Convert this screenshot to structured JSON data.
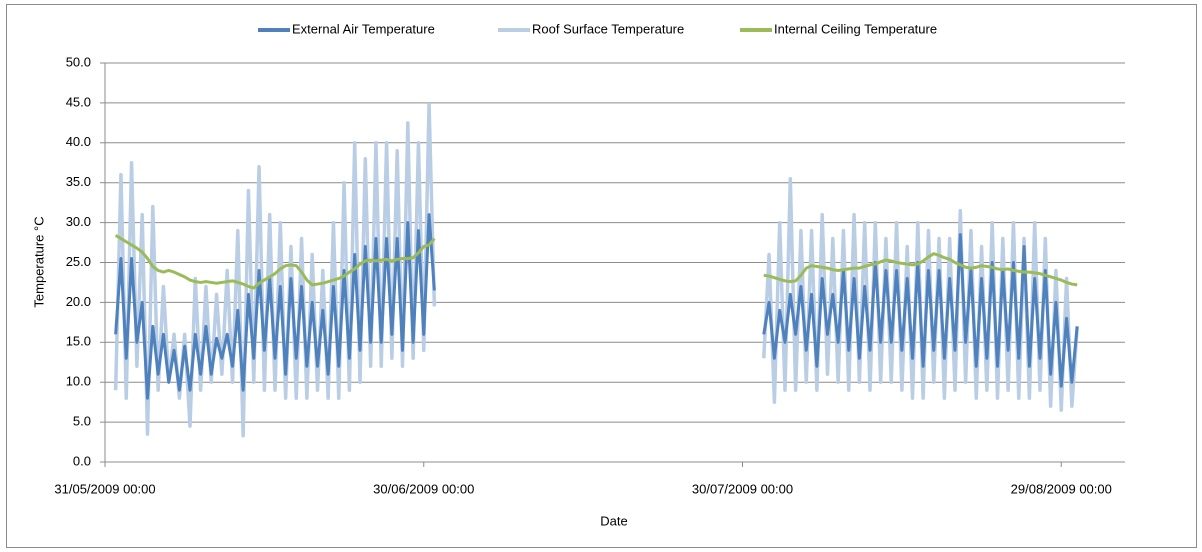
{
  "chart_data": {
    "type": "line",
    "y_label": "Temperature °C",
    "x_label": "Date",
    "x": [
      "01/06/2009 00:00",
      "01/06/2009 12:00",
      "02/06/2009 00:00",
      "02/06/2009 12:00",
      "03/06/2009 00:00",
      "03/06/2009 12:00",
      "04/06/2009 00:00",
      "04/06/2009 12:00",
      "05/06/2009 00:00",
      "05/06/2009 12:00",
      "06/06/2009 00:00",
      "06/06/2009 12:00",
      "07/06/2009 00:00",
      "07/06/2009 12:00",
      "08/06/2009 00:00",
      "08/06/2009 12:00",
      "09/06/2009 00:00",
      "09/06/2009 12:00",
      "10/06/2009 00:00",
      "10/06/2009 12:00",
      "11/06/2009 00:00",
      "11/06/2009 12:00",
      "12/06/2009 00:00",
      "12/06/2009 12:00",
      "13/06/2009 00:00",
      "13/06/2009 12:00",
      "14/06/2009 00:00",
      "14/06/2009 12:00",
      "15/06/2009 00:00",
      "15/06/2009 12:00",
      "16/06/2009 00:00",
      "16/06/2009 12:00",
      "17/06/2009 00:00",
      "17/06/2009 12:00",
      "18/06/2009 00:00",
      "18/06/2009 12:00",
      "19/06/2009 00:00",
      "19/06/2009 12:00",
      "20/06/2009 00:00",
      "20/06/2009 12:00",
      "21/06/2009 00:00",
      "21/06/2009 12:00",
      "22/06/2009 00:00",
      "22/06/2009 12:00",
      "23/06/2009 00:00",
      "23/06/2009 12:00",
      "24/06/2009 00:00",
      "24/06/2009 12:00",
      "25/06/2009 00:00",
      "25/06/2009 12:00",
      "26/06/2009 00:00",
      "26/06/2009 12:00",
      "27/06/2009 00:00",
      "27/06/2009 12:00",
      "28/06/2009 00:00",
      "28/06/2009 12:00",
      "29/06/2009 00:00",
      "29/06/2009 12:00",
      "30/06/2009 00:00",
      "30/06/2009 12:00",
      "01/07/2009 00:00",
      "15/07/2009 00:00",
      "01/08/2009 00:00",
      "01/08/2009 12:00",
      "02/08/2009 00:00",
      "02/08/2009 12:00",
      "03/08/2009 00:00",
      "03/08/2009 12:00",
      "04/08/2009 00:00",
      "04/08/2009 12:00",
      "05/08/2009 00:00",
      "05/08/2009 12:00",
      "06/08/2009 00:00",
      "06/08/2009 12:00",
      "07/08/2009 00:00",
      "07/08/2009 12:00",
      "08/08/2009 00:00",
      "08/08/2009 12:00",
      "09/08/2009 00:00",
      "09/08/2009 12:00",
      "10/08/2009 00:00",
      "10/08/2009 12:00",
      "11/08/2009 00:00",
      "11/08/2009 12:00",
      "12/08/2009 00:00",
      "12/08/2009 12:00",
      "13/08/2009 00:00",
      "13/08/2009 12:00",
      "14/08/2009 00:00",
      "14/08/2009 12:00",
      "15/08/2009 00:00",
      "15/08/2009 12:00",
      "16/08/2009 00:00",
      "16/08/2009 12:00",
      "17/08/2009 00:00",
      "17/08/2009 12:00",
      "18/08/2009 00:00",
      "18/08/2009 12:00",
      "19/08/2009 00:00",
      "19/08/2009 12:00",
      "20/08/2009 00:00",
      "20/08/2009 12:00",
      "21/08/2009 00:00",
      "21/08/2009 12:00",
      "22/08/2009 00:00",
      "22/08/2009 12:00",
      "23/08/2009 00:00",
      "23/08/2009 12:00",
      "24/08/2009 00:00",
      "24/08/2009 12:00",
      "25/08/2009 00:00",
      "25/08/2009 12:00",
      "26/08/2009 00:00",
      "26/08/2009 12:00",
      "27/08/2009 00:00",
      "27/08/2009 12:00",
      "28/08/2009 00:00",
      "28/08/2009 12:00",
      "29/08/2009 00:00",
      "29/08/2009 12:00",
      "30/08/2009 00:00",
      "30/08/2009 12:00"
    ],
    "series": [
      {
        "name": "External Air Temperature",
        "color": "#4f81bd",
        "values": [
          16,
          25.5,
          13,
          25.5,
          15,
          20,
          8,
          17,
          11,
          16,
          10,
          14,
          9,
          14.5,
          9,
          16,
          11,
          17,
          11,
          15.5,
          13,
          16,
          12,
          19,
          9,
          21,
          13,
          24,
          14,
          23,
          13,
          22,
          11,
          23,
          13,
          22,
          12,
          20,
          12,
          19,
          11,
          22,
          12,
          24,
          13,
          26,
          14,
          27,
          15,
          28,
          15,
          28,
          16,
          28,
          14,
          30,
          15,
          29,
          16,
          31,
          21.5,
          null,
          16,
          20,
          13,
          19,
          15,
          21,
          16,
          22,
          14,
          21,
          12,
          23,
          16,
          21,
          15,
          24,
          14,
          23,
          13,
          22,
          14,
          25,
          15,
          24,
          15,
          24,
          14,
          23,
          13,
          25,
          12,
          24,
          14,
          24,
          13,
          23,
          14,
          28.5,
          15,
          24,
          12,
          23,
          13,
          25,
          12,
          24,
          14,
          25,
          13,
          27,
          12,
          23,
          13,
          24,
          11,
          20,
          9.5,
          18,
          10,
          17
        ]
      },
      {
        "name": "Roof Surface Temperature",
        "color": "#b9cde5",
        "values": [
          9,
          36,
          8,
          37.5,
          12,
          31,
          3.5,
          32,
          9,
          22,
          10,
          16,
          8,
          16,
          4.5,
          23,
          9,
          22,
          10,
          21,
          11,
          24,
          10,
          29,
          3.3,
          34,
          10,
          37,
          9,
          31,
          9,
          30,
          8,
          27,
          8,
          28,
          8,
          26,
          9,
          24,
          8,
          30,
          8,
          35,
          9,
          40,
          10,
          38,
          12,
          40,
          12,
          40,
          13,
          39,
          12,
          42.5,
          13,
          40,
          14,
          44.8,
          19.5,
          null,
          13,
          26,
          7.5,
          30,
          9,
          35.5,
          9,
          29,
          10,
          29,
          9,
          31,
          11,
          28,
          10,
          29,
          9,
          31,
          10,
          30,
          9,
          30,
          10,
          28,
          10,
          30,
          9,
          27,
          8,
          30,
          8,
          29,
          10,
          28,
          8,
          28,
          9,
          31.5,
          10,
          29,
          8,
          27,
          9,
          30,
          8,
          28,
          9,
          30,
          8,
          28,
          8,
          30,
          9,
          28,
          7,
          24,
          6.5,
          23,
          7,
          17
        ]
      },
      {
        "name": "Internal Ceiling Temperature",
        "color": "#9bbb59",
        "values": [
          28.4,
          28,
          27.6,
          27.2,
          26.8,
          26.3,
          25.5,
          24.5,
          24,
          23.8,
          24,
          23.8,
          23.5,
          23.2,
          22.8,
          22.6,
          22.5,
          22.6,
          22.5,
          22.4,
          22.5,
          22.6,
          22.7,
          22.5,
          22.3,
          22,
          21.8,
          22.4,
          22.8,
          23.2,
          23.6,
          24.2,
          24.6,
          24.7,
          24.6,
          23.8,
          22.8,
          22.2,
          22.3,
          22.4,
          22.6,
          22.8,
          23,
          23.3,
          23.8,
          24.2,
          24.8,
          25.2,
          25.3,
          25.2,
          25.3,
          25.4,
          25.2,
          25.4,
          25.5,
          25.5,
          25.6,
          26.2,
          27,
          27.2,
          28,
          null,
          23.4,
          23.3,
          23.1,
          22.9,
          22.7,
          22.6,
          22.7,
          23.4,
          24.3,
          24.6,
          24.5,
          24.4,
          24.3,
          24.1,
          24,
          24.1,
          24.2,
          24.3,
          24.3,
          24.5,
          24.7,
          24.8,
          25.1,
          25.3,
          25.2,
          25,
          24.9,
          24.8,
          24.7,
          24.8,
          25.2,
          25.7,
          26.1,
          25.9,
          25.6,
          25.4,
          25,
          24.7,
          24.4,
          24.3,
          24.4,
          24.6,
          24.5,
          24.4,
          24.2,
          24.1,
          24.2,
          24,
          23.9,
          23.8,
          23.8,
          23.7,
          23.6,
          23.4,
          23.2,
          23,
          22.8,
          22.5,
          22.3,
          22.2
        ]
      }
    ],
    "xlim": [
      "31/05/2009 00:00",
      "04/09/2009 00:00"
    ],
    "xticks": [
      "31/05/2009 00:00",
      "30/06/2009 00:00",
      "30/07/2009 00:00",
      "29/08/2009 00:00"
    ],
    "ylim": [
      0,
      50
    ],
    "yticks": [
      {
        "value": 0,
        "label": "0.0"
      },
      {
        "value": 5,
        "label": "5.0"
      },
      {
        "value": 10,
        "label": "10.0"
      },
      {
        "value": 15,
        "label": "15.0"
      },
      {
        "value": 20,
        "label": "20.0"
      },
      {
        "value": 25,
        "label": "25.0"
      },
      {
        "value": 30,
        "label": "30.0"
      },
      {
        "value": 35,
        "label": "35.0"
      },
      {
        "value": 40,
        "label": "40.0"
      },
      {
        "value": 45,
        "label": "45.0"
      },
      {
        "value": 50,
        "label": "50.0"
      }
    ],
    "grid": true,
    "legend": "top"
  }
}
